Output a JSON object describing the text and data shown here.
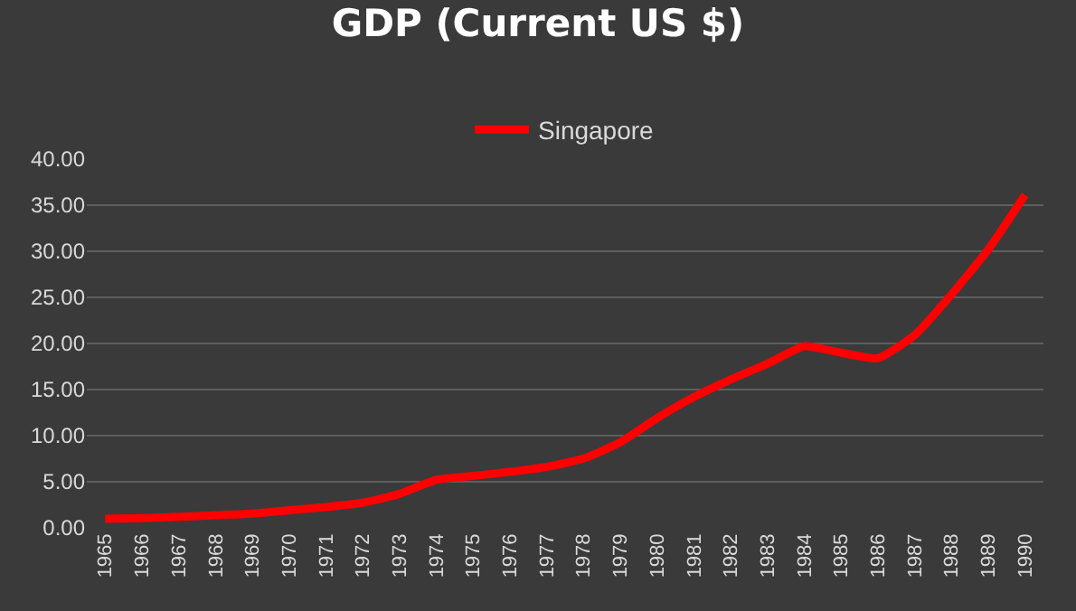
{
  "chart_data": {
    "type": "line",
    "title": "GDP (Current US $)",
    "categories": [
      "1965",
      "1966",
      "1967",
      "1968",
      "1969",
      "1970",
      "1971",
      "1972",
      "1973",
      "1974",
      "1975",
      "1976",
      "1977",
      "1978",
      "1979",
      "1980",
      "1981",
      "1982",
      "1983",
      "1984",
      "1985",
      "1986",
      "1987",
      "1988",
      "1989",
      "1990"
    ],
    "series": [
      {
        "name": "Singapore",
        "color": "#ff0000",
        "values": [
          0.97,
          1.06,
          1.19,
          1.36,
          1.55,
          1.92,
          2.26,
          2.72,
          3.69,
          5.22,
          5.63,
          6.07,
          6.62,
          7.52,
          9.29,
          11.9,
          14.2,
          16.1,
          17.8,
          19.7,
          19.0,
          18.4,
          20.9,
          25.3,
          30.2,
          36.1
        ]
      }
    ],
    "ylim": [
      0,
      40
    ],
    "yticks": [
      {
        "value": 0,
        "label": "0.00"
      },
      {
        "value": 5,
        "label": "5.00"
      },
      {
        "value": 10,
        "label": "10.00"
      },
      {
        "value": 15,
        "label": "15.00"
      },
      {
        "value": 20,
        "label": "20.00"
      },
      {
        "value": 25,
        "label": "25.00"
      },
      {
        "value": 30,
        "label": "30.00"
      },
      {
        "value": 35,
        "label": "35.00"
      },
      {
        "value": 40,
        "label": "40.00"
      }
    ],
    "grid": "y",
    "legend": "top",
    "marker": "none",
    "line_style": "solid"
  }
}
